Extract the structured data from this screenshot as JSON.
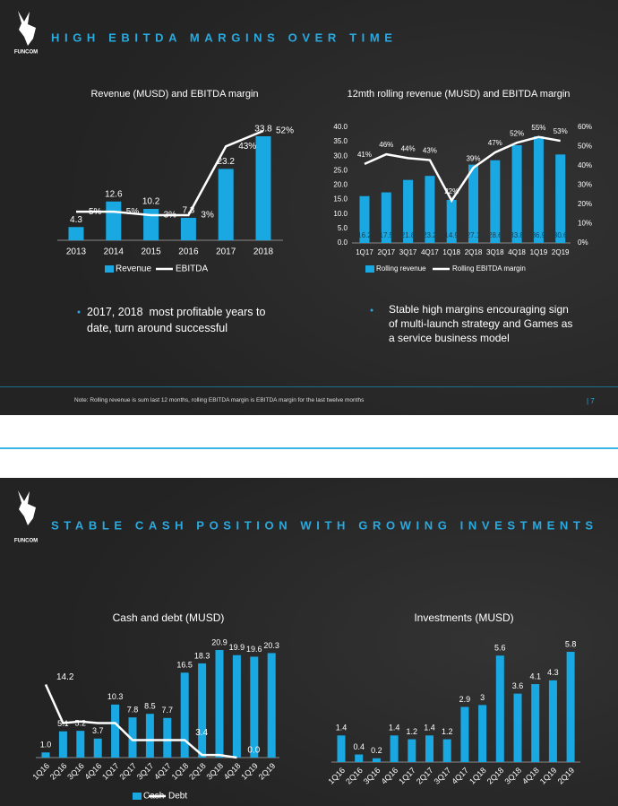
{
  "slides": [
    {
      "logo": "FUNCOM",
      "title": "HIGH EBITDA MARGINS OVER TIME",
      "bullets": [
        "2017, 2018  most profitable years to date, turn around successful",
        "Stable high margins encouraging sign of multi-launch strategy and Games as a service business model"
      ],
      "note": "Note: Rolling revenue is sum last 12 months, rolling EBITDA margin is EBITDA margin for the last twelve months",
      "page": "| 7"
    },
    {
      "logo": "FUNCOM",
      "title": "STABLE CASH POSITION WITH GROWING INVESTMENTS"
    }
  ],
  "chart_data": [
    {
      "type": "bar",
      "title": "Revenue (MUSD) and EBITDA margin",
      "categories": [
        "2013",
        "2014",
        "2015",
        "2016",
        "2017",
        "2018"
      ],
      "series": [
        {
          "name": "Revenue",
          "type": "bar",
          "color": "#1aa8e2",
          "values": [
            4.3,
            12.6,
            10.2,
            7.3,
            23.2,
            33.8
          ]
        },
        {
          "name": "EBITDA",
          "type": "line",
          "axis": "y2",
          "color": "#ffffff",
          "values": [
            5,
            5,
            3,
            3,
            43,
            52
          ],
          "value_labels": [
            "5%",
            "5%",
            "3%",
            "3%",
            "43%",
            "52%"
          ]
        }
      ],
      "legend": "bottom"
    },
    {
      "type": "bar",
      "title": "12mth rolling revenue (MUSD) and EBITDA margin",
      "categories": [
        "1Q17",
        "2Q17",
        "3Q17",
        "4Q17",
        "1Q18",
        "2Q18",
        "3Q18",
        "4Q18",
        "1Q19",
        "2Q19"
      ],
      "series": [
        {
          "name": "Rolling revenue",
          "type": "bar",
          "color": "#1aa8e2",
          "values": [
            16.2,
            17.5,
            21.8,
            23.2,
            14.9,
            27.1,
            28.6,
            33.8,
            36.9,
            30.6
          ]
        },
        {
          "name": "Rolling EBITDA margin",
          "type": "line",
          "axis": "y2",
          "color": "#ffffff",
          "values": [
            41,
            46,
            44,
            43,
            22,
            39,
            47,
            52,
            55,
            53
          ],
          "value_labels": [
            "41%",
            "46%",
            "44%",
            "43%",
            "22%",
            "39%",
            "47%",
            "52%",
            "55%",
            "53%"
          ]
        }
      ],
      "ylim": [
        0,
        40
      ],
      "yticks": [
        {
          "value": 0,
          "label": "0.0"
        },
        {
          "value": 5,
          "label": "5.0"
        },
        {
          "value": 10,
          "label": "10.0"
        },
        {
          "value": 15,
          "label": "15.0"
        },
        {
          "value": 20,
          "label": "20.0"
        },
        {
          "value": 25,
          "label": "25.0"
        },
        {
          "value": 30,
          "label": "30.0"
        },
        {
          "value": 35,
          "label": "35.0"
        },
        {
          "value": 40,
          "label": "40.0"
        }
      ],
      "y2lim": [
        0,
        60
      ],
      "y2ticks": [
        {
          "value": 0,
          "label": "0%"
        },
        {
          "value": 10,
          "label": "10%"
        },
        {
          "value": 20,
          "label": "20%"
        },
        {
          "value": 30,
          "label": "30%"
        },
        {
          "value": 40,
          "label": "40%"
        },
        {
          "value": 50,
          "label": "50%"
        },
        {
          "value": 60,
          "label": "60%"
        }
      ],
      "legend": "bottom"
    },
    {
      "type": "bar",
      "title": "Cash and debt (MUSD)",
      "categories": [
        "1Q16",
        "2Q16",
        "3Q16",
        "4Q16",
        "1Q17",
        "2Q17",
        "3Q17",
        "4Q17",
        "1Q18",
        "2Q18",
        "3Q18",
        "4Q18",
        "1Q19",
        "2Q19"
      ],
      "series": [
        {
          "name": "Cash",
          "type": "bar",
          "color": "#1aa8e2",
          "values": [
            1.0,
            5.1,
            5.2,
            3.7,
            10.3,
            7.8,
            8.5,
            7.7,
            16.5,
            18.3,
            20.9,
            19.9,
            19.6,
            20.3
          ],
          "value_labels": [
            "1.0",
            "5.1",
            "5.2",
            "3.7",
            "10.3",
            "7.8",
            "8.5",
            "7.7",
            "16.5",
            "18.3",
            "20.9",
            "19.9",
            "19.6",
            "20.3"
          ]
        },
        {
          "name": "Debt",
          "type": "line",
          "color": "#ffffff",
          "values": [
            14.2,
            6.7,
            7.0,
            6.7,
            6.7,
            3.4,
            3.4,
            3.4,
            3.4,
            0.5,
            0.5,
            0.0,
            null,
            null
          ],
          "value_labels": [
            "14.2",
            null,
            null,
            null,
            null,
            null,
            null,
            null,
            "3.4",
            null,
            null,
            "0.0",
            null,
            null
          ]
        }
      ],
      "legend": "bottom"
    },
    {
      "type": "bar",
      "title": "Investments (MUSD)",
      "categories": [
        "1Q16",
        "2Q16",
        "3Q16",
        "4Q16",
        "1Q17",
        "2Q17",
        "3Q17",
        "4Q17",
        "1Q18",
        "2Q18",
        "3Q18",
        "4Q18",
        "1Q19",
        "2Q19"
      ],
      "series": [
        {
          "name": null,
          "type": "bar",
          "color": "#1aa8e2",
          "values": [
            1.4,
            0.4,
            0.2,
            1.4,
            1.2,
            1.4,
            1.2,
            2.9,
            3.0,
            5.6,
            3.6,
            4.1,
            4.3,
            5.8
          ]
        }
      ]
    }
  ]
}
